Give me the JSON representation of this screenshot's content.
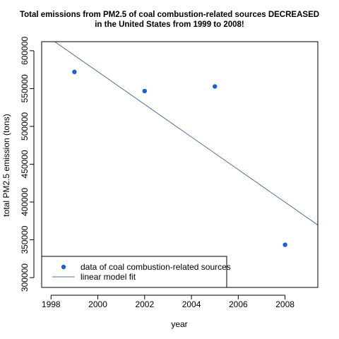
{
  "chart_data": {
    "type": "scatter",
    "title": [
      "Total emissions from PM2.5 of coal combustion-related sources DECREASED",
      "in the United States from 1999 to 2008!"
    ],
    "xlabel": "year",
    "ylabel": "total PM2.5 emission (tons)",
    "xlim": [
      1997.6,
      2009.4
    ],
    "ylim": [
      287000,
      612000
    ],
    "xticks": [
      1998,
      2000,
      2002,
      2004,
      2006,
      2008
    ],
    "yticks": [
      300000,
      350000,
      400000,
      450000,
      500000,
      550000,
      600000
    ],
    "grid": false,
    "series": [
      {
        "name": "data of coal combustion-related sources",
        "kind": "points",
        "color": "#1f5fc9",
        "x": [
          1999,
          2002,
          2005,
          2008
        ],
        "y": [
          572000,
          546700,
          552800,
          343400
        ]
      },
      {
        "name": "linear model fit",
        "kind": "line",
        "color": "#4a6fa5",
        "x": [
          1997.6,
          2009.4
        ],
        "y": [
          624000,
          369500
        ]
      }
    ],
    "legend": "bottom-left"
  }
}
